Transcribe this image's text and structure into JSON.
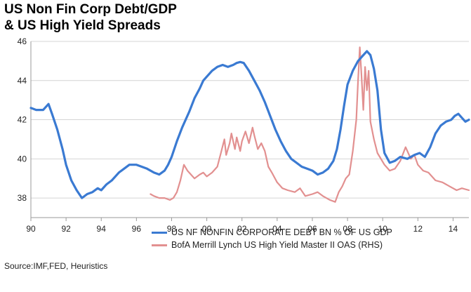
{
  "title_lines": [
    "US Non Fin Corp Debt/GDP",
    "& US High Yield Spreads"
  ],
  "source": "Source:IMF,FED, Heuristics",
  "colors": {
    "debt": "#3a7ad2",
    "spread": "#e29090",
    "grid": "#d4d4d4",
    "axis": "#9a9a9a"
  },
  "chart_data": {
    "type": "line",
    "xlim": [
      1990,
      2014.9
    ],
    "ylim": [
      37,
      46
    ],
    "y_ticks": [
      38,
      40,
      42,
      44,
      46
    ],
    "x_tick_values": [
      1990,
      1992,
      1994,
      1996,
      1998,
      2000,
      2002,
      2004,
      2006,
      2008,
      2010,
      2012,
      2014
    ],
    "x_tick_labels": [
      "90",
      "92",
      "94",
      "96",
      "98",
      "00",
      "02",
      "04",
      "06",
      "08",
      "10",
      "12",
      "14"
    ],
    "grid": "horizontal",
    "legend_position": "bottom",
    "series": [
      {
        "name": "US NF NONFIN CORPORATE DEBT BN % OF US GDP",
        "key": "debt",
        "x": [
          1990,
          1990.3,
          1990.7,
          1991.0,
          1991.2,
          1991.5,
          1991.8,
          1992.0,
          1992.3,
          1992.6,
          1992.9,
          1993.2,
          1993.5,
          1993.8,
          1994.0,
          1994.3,
          1994.6,
          1995.0,
          1995.3,
          1995.6,
          1996.0,
          1996.3,
          1996.6,
          1997.0,
          1997.3,
          1997.6,
          1997.8,
          1998.0,
          1998.3,
          1998.6,
          1999.0,
          1999.3,
          1999.6,
          1999.8,
          2000.0,
          2000.3,
          2000.6,
          2000.9,
          2001.2,
          2001.5,
          2001.7,
          2001.9,
          2002.1,
          2002.4,
          2002.7,
          2003.0,
          2003.3,
          2003.6,
          2003.9,
          2004.2,
          2004.5,
          2004.8,
          2005.1,
          2005.4,
          2005.7,
          2006.0,
          2006.3,
          2006.6,
          2006.9,
          2007.2,
          2007.4,
          2007.6,
          2007.8,
          2008.0,
          2008.3,
          2008.6,
          2008.9,
          2009.1,
          2009.3,
          2009.5,
          2009.7,
          2009.9,
          2010.1,
          2010.4,
          2010.7,
          2011.0,
          2011.4,
          2011.8,
          2012.1,
          2012.4,
          2012.7,
          2013.0,
          2013.3,
          2013.6,
          2013.9,
          2014.1,
          2014.3,
          2014.5,
          2014.7,
          2014.9
        ],
        "values": [
          42.6,
          42.5,
          42.5,
          42.8,
          42.3,
          41.5,
          40.5,
          39.7,
          38.9,
          38.4,
          38.0,
          38.2,
          38.3,
          38.5,
          38.4,
          38.7,
          38.9,
          39.3,
          39.5,
          39.7,
          39.7,
          39.6,
          39.5,
          39.3,
          39.2,
          39.4,
          39.7,
          40.1,
          40.9,
          41.6,
          42.4,
          43.1,
          43.6,
          44.0,
          44.2,
          44.5,
          44.7,
          44.8,
          44.7,
          44.8,
          44.9,
          44.95,
          44.9,
          44.5,
          44.0,
          43.5,
          42.9,
          42.2,
          41.5,
          40.9,
          40.4,
          40.0,
          39.8,
          39.6,
          39.5,
          39.4,
          39.2,
          39.3,
          39.5,
          39.9,
          40.5,
          41.5,
          42.7,
          43.8,
          44.5,
          45.0,
          45.3,
          45.5,
          45.3,
          44.6,
          43.5,
          41.5,
          40.3,
          39.8,
          39.9,
          40.1,
          40.0,
          40.2,
          40.3,
          40.1,
          40.6,
          41.3,
          41.7,
          41.9,
          42.0,
          42.2,
          42.3,
          42.1,
          41.9,
          42.0
        ]
      },
      {
        "name": "BofA Merrill Lynch US High Yield Master II OAS (RHS)",
        "key": "spread",
        "x": [
          1996.8,
          1997.0,
          1997.3,
          1997.6,
          1997.9,
          1998.1,
          1998.3,
          1998.5,
          1998.7,
          1998.9,
          1999.1,
          1999.3,
          1999.6,
          1999.8,
          2000.0,
          2000.3,
          2000.6,
          2000.8,
          2001.0,
          2001.1,
          2001.3,
          2001.4,
          2001.6,
          2001.7,
          2001.9,
          2002.0,
          2002.2,
          2002.4,
          2002.6,
          2002.7,
          2002.9,
          2003.1,
          2003.3,
          2003.5,
          2003.7,
          2004.0,
          2004.3,
          2004.6,
          2005.0,
          2005.3,
          2005.6,
          2006.0,
          2006.3,
          2006.6,
          2007.0,
          2007.3,
          2007.5,
          2007.7,
          2007.9,
          2008.1,
          2008.3,
          2008.5,
          2008.6,
          2008.7,
          2008.8,
          2008.9,
          2009.0,
          2009.1,
          2009.2,
          2009.3,
          2009.5,
          2009.7,
          2009.9,
          2010.1,
          2010.4,
          2010.7,
          2011.0,
          2011.3,
          2011.6,
          2011.8,
          2012.0,
          2012.3,
          2012.6,
          2013.0,
          2013.4,
          2013.8,
          2014.2,
          2014.5,
          2014.9
        ],
        "values": [
          38.2,
          38.1,
          38.0,
          38.0,
          37.9,
          38.0,
          38.3,
          38.9,
          39.7,
          39.4,
          39.2,
          39.0,
          39.2,
          39.3,
          39.1,
          39.3,
          39.6,
          40.3,
          41.0,
          40.2,
          40.8,
          41.3,
          40.5,
          41.1,
          40.4,
          40.9,
          41.4,
          40.8,
          41.6,
          41.2,
          40.5,
          40.8,
          40.4,
          39.6,
          39.3,
          38.8,
          38.5,
          38.4,
          38.3,
          38.5,
          38.1,
          38.2,
          38.3,
          38.1,
          37.9,
          37.8,
          38.3,
          38.6,
          39.0,
          39.2,
          40.4,
          42.0,
          44.0,
          45.7,
          44.2,
          42.5,
          44.7,
          43.5,
          44.5,
          41.9,
          41.0,
          40.3,
          40.0,
          39.7,
          39.4,
          39.5,
          39.9,
          40.6,
          40.0,
          40.2,
          39.7,
          39.4,
          39.3,
          38.9,
          38.8,
          38.6,
          38.4,
          38.5,
          38.4
        ]
      }
    ]
  }
}
